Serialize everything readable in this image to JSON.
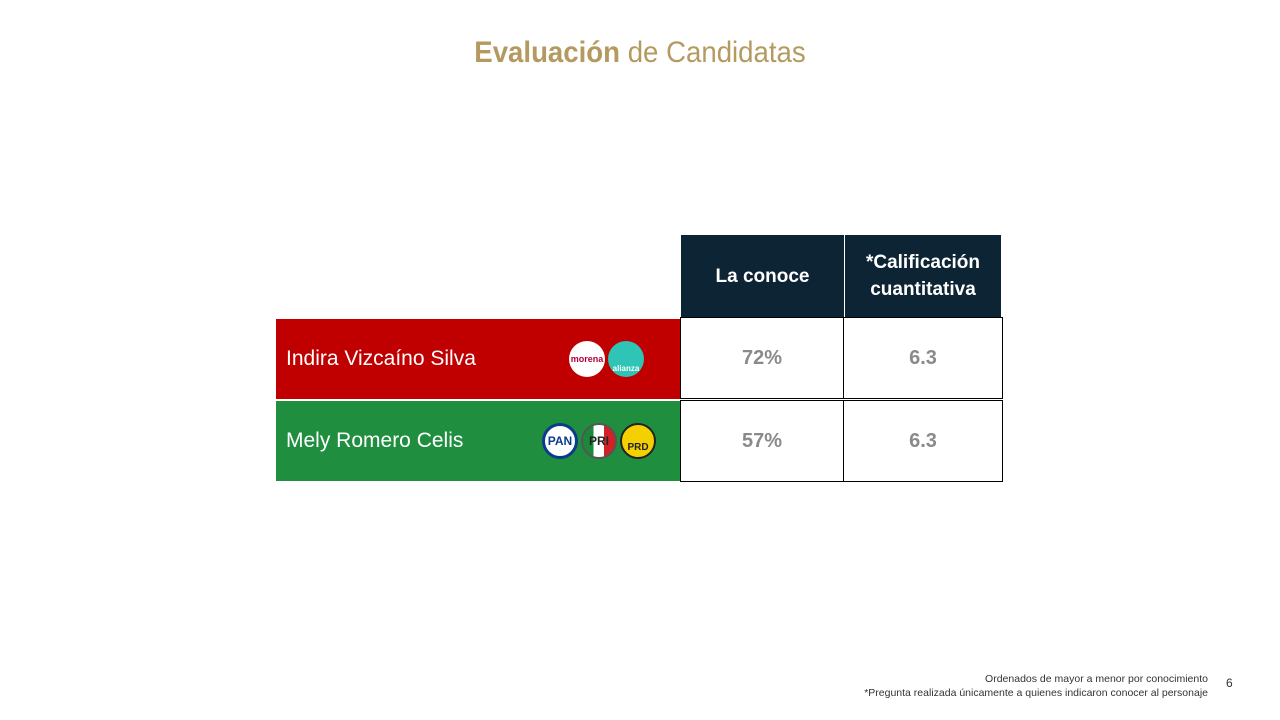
{
  "title": {
    "bold": "Evaluación",
    "rest": " de Candidatas"
  },
  "table": {
    "headers": [
      "La conoce",
      "*Calificación cuantitativa"
    ],
    "rows": [
      {
        "name": "Indira Vizcaíno Silva",
        "conoce": "72%",
        "calificacion": "6.3",
        "logos": [
          "morena",
          "alianza"
        ]
      },
      {
        "name": "Mely Romero Celis",
        "conoce": "57%",
        "calificacion": "6.3",
        "logos": [
          "PAN",
          "PRI",
          "PRD"
        ]
      }
    ]
  },
  "footer": {
    "line1": "Ordenados de mayor a menor por conocimiento",
    "line2": "*Pregunta realizada únicamente a quienes indicaron conocer al personaje"
  },
  "page_number": "6",
  "colors": {
    "title": "#b59a60",
    "header_bg": "#0d2435",
    "row1": "#c00000",
    "row2": "#1f8f3f",
    "values": "#8a8a8a"
  }
}
